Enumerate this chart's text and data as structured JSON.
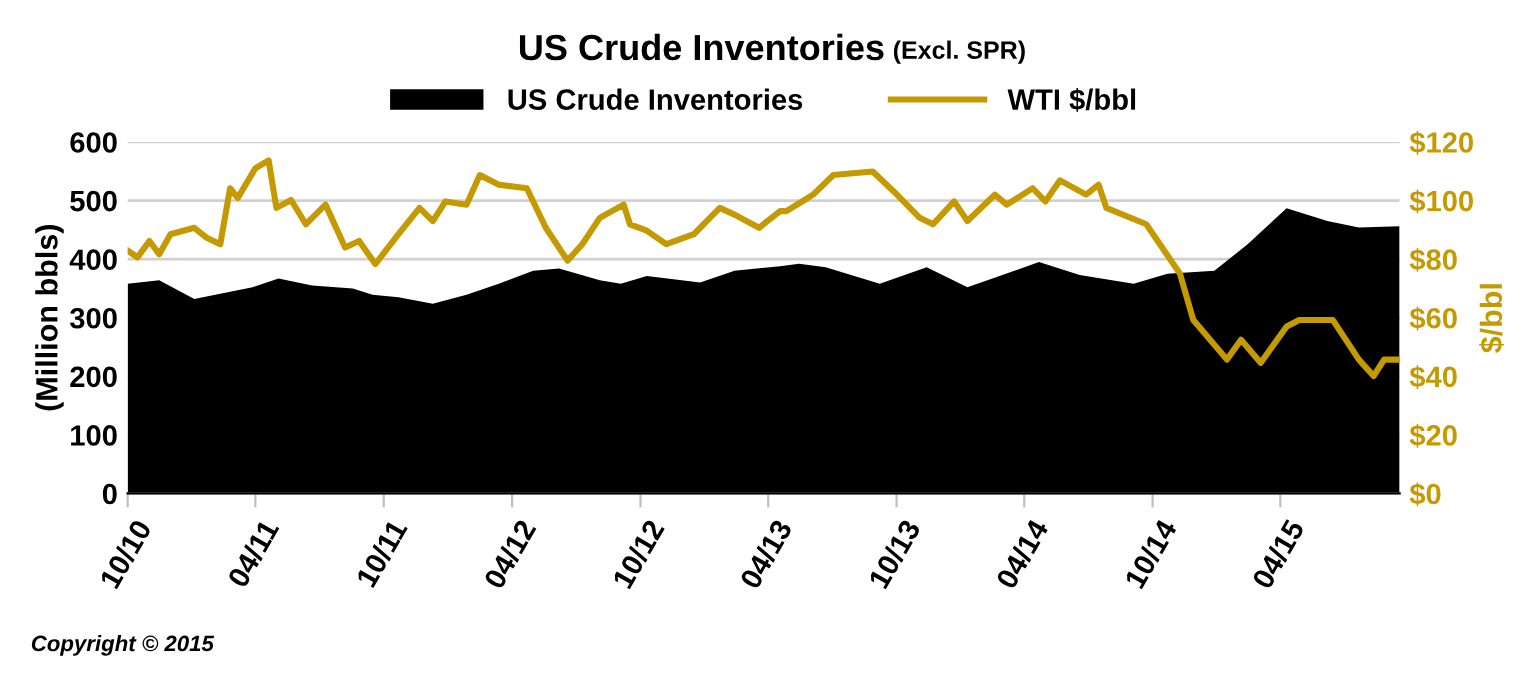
{
  "chart_data": {
    "type": "area",
    "title": "US Crude Inventories",
    "subtitle": "(Excl. SPR)",
    "ylabel": "(Million bbls)",
    "y2label": "$/bbl",
    "annotations": [
      "Copyright © 2015"
    ],
    "legend": "top",
    "grid": "y",
    "xlim": [
      "2010-10-01",
      "2015-09-18"
    ],
    "xticks": [
      {
        "value": "2010-10-01",
        "label": "10/10"
      },
      {
        "value": "2011-04-01",
        "label": "04/11"
      },
      {
        "value": "2011-10-01",
        "label": "10/11"
      },
      {
        "value": "2012-04-01",
        "label": "04/12"
      },
      {
        "value": "2012-10-01",
        "label": "10/12"
      },
      {
        "value": "2013-04-01",
        "label": "04/13"
      },
      {
        "value": "2013-10-01",
        "label": "10/13"
      },
      {
        "value": "2014-04-01",
        "label": "04/14"
      },
      {
        "value": "2014-10-01",
        "label": "10/14"
      },
      {
        "value": "2015-04-01",
        "label": "04/15"
      }
    ],
    "ylim": [
      0,
      600
    ],
    "yticks": [
      0,
      100,
      200,
      300,
      400,
      500,
      600
    ],
    "y2lim": [
      0,
      120
    ],
    "y2ticks": [
      {
        "value": 0,
        "label": "$0"
      },
      {
        "value": 20,
        "label": "$20"
      },
      {
        "value": 40,
        "label": "$40"
      },
      {
        "value": 60,
        "label": "$60"
      },
      {
        "value": 80,
        "label": "$80"
      },
      {
        "value": 100,
        "label": "$100"
      },
      {
        "value": 120,
        "label": "$120"
      }
    ],
    "series": [
      {
        "name": "US Crude Inventories",
        "color": "#000000",
        "x": [
          "2010-10-01",
          "2010-11-15",
          "2011-01-04",
          "2011-02-10",
          "2011-03-28",
          "2011-05-04",
          "2011-06-21",
          "2011-08-18",
          "2011-09-15",
          "2011-10-22",
          "2011-12-10",
          "2012-01-27",
          "2012-03-13",
          "2012-05-01",
          "2012-06-07",
          "2012-08-04",
          "2012-09-03",
          "2012-10-10",
          "2012-12-25",
          "2013-02-12",
          "2013-04-18",
          "2013-05-15",
          "2013-06-22",
          "2013-09-07",
          "2013-11-13",
          "2014-01-10",
          "2014-04-22",
          "2014-06-19",
          "2014-09-04",
          "2014-10-22",
          "2014-12-28",
          "2015-02-13",
          "2015-04-10",
          "2015-06-07",
          "2015-07-22",
          "2015-09-18"
        ],
        "values": [
          358,
          364,
          332,
          341,
          352,
          367,
          355,
          350,
          339,
          335,
          324,
          339,
          358,
          380,
          384,
          364,
          358,
          371,
          360,
          380,
          388,
          392,
          386,
          358,
          386,
          352,
          395,
          373,
          358,
          375,
          380,
          425,
          487,
          465,
          454,
          456
        ]
      },
      {
        "name": "WTI $/bbl",
        "type": "line",
        "axis": "y2",
        "color": "#c49a00",
        "x": [
          "2010-10-01",
          "2010-10-15",
          "2010-11-01",
          "2010-11-15",
          "2010-12-01",
          "2011-01-04",
          "2011-01-21",
          "2011-02-10",
          "2011-02-24",
          "2011-03-07",
          "2011-04-01",
          "2011-04-20",
          "2011-05-01",
          "2011-05-22",
          "2011-06-12",
          "2011-07-10",
          "2011-08-07",
          "2011-08-27",
          "2011-09-19",
          "2011-10-22",
          "2011-11-21",
          "2011-12-10",
          "2011-12-28",
          "2012-01-27",
          "2012-02-15",
          "2012-03-13",
          "2012-04-22",
          "2012-05-19",
          "2012-06-19",
          "2012-07-10",
          "2012-08-04",
          "2012-09-07",
          "2012-09-16",
          "2012-10-10",
          "2012-11-07",
          "2012-12-16",
          "2013-01-22",
          "2013-02-12",
          "2013-03-19",
          "2013-04-18",
          "2013-04-27",
          "2013-06-04",
          "2013-07-03",
          "2013-08-28",
          "2013-09-27",
          "2013-11-03",
          "2013-11-22",
          "2013-12-22",
          "2014-01-10",
          "2014-02-18",
          "2014-03-07",
          "2014-04-13",
          "2014-05-01",
          "2014-05-22",
          "2014-06-28",
          "2014-07-16",
          "2014-07-27",
          "2014-09-22",
          "2014-11-09",
          "2014-11-28",
          "2015-01-15",
          "2015-02-04",
          "2015-03-04",
          "2015-04-10",
          "2015-04-28",
          "2015-06-15",
          "2015-07-22",
          "2015-08-12",
          "2015-08-27",
          "2015-09-18"
        ],
        "values": [
          82.9,
          80.6,
          86.2,
          81.7,
          88.5,
          90.7,
          87.4,
          85.1,
          104.2,
          100.9,
          111,
          113.7,
          97.5,
          100.2,
          91.9,
          98.6,
          84,
          86.2,
          78.3,
          88.5,
          97.5,
          93,
          99.7,
          98.6,
          108.7,
          105.4,
          104.2,
          90.7,
          79.5,
          85.1,
          94.1,
          98.6,
          91.9,
          89.7,
          85.1,
          88.5,
          97.5,
          95.2,
          90.7,
          96.4,
          96.4,
          102,
          108.7,
          109.9,
          103.1,
          94.1,
          91.9,
          99.7,
          93,
          102,
          98.6,
          104.2,
          99.7,
          106.9,
          102,
          105.4,
          97.5,
          91.9,
          75,
          59.2,
          45.7,
          52.5,
          44.6,
          57,
          59.2,
          59.2,
          45.7,
          40.1,
          45.7,
          45.7
        ]
      }
    ]
  }
}
